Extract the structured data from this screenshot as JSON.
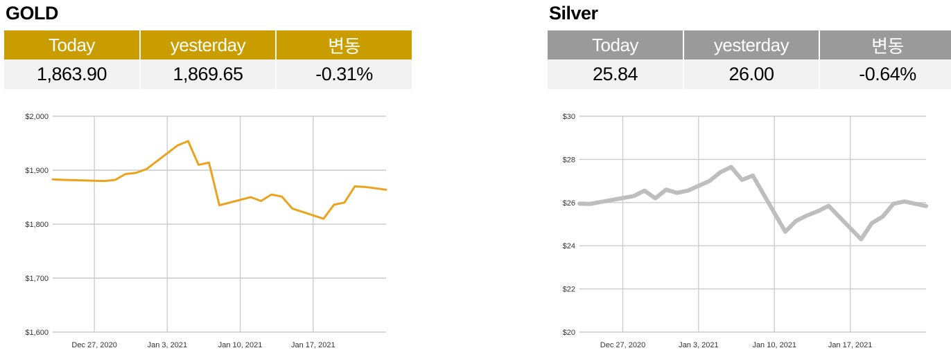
{
  "colors": {
    "gold": "#c99c00",
    "gold_line": "#eba21d",
    "silver": "#9a9a9a",
    "silver_line": "#bebebe"
  },
  "gold": {
    "title": "GOLD",
    "headers": [
      "Today",
      "yesterday",
      "변동"
    ],
    "values": [
      "1,863.90",
      "1,869.65",
      "-0.31%"
    ]
  },
  "silver": {
    "title": "Silver",
    "headers": [
      "Today",
      "yesterday",
      "변동"
    ],
    "values": [
      "25.84",
      "26.00",
      "-0.64%"
    ]
  },
  "chart_data": [
    {
      "type": "line",
      "ylim": [
        1600,
        2000
      ],
      "yticks": [
        2000,
        1900,
        1800,
        1700,
        1600
      ],
      "ytick_labels": [
        "$2,000",
        "$1,900",
        "$1,800",
        "$1,700",
        "$1,600"
      ],
      "xlim": [
        "2020-12-23",
        "2021-01-24"
      ],
      "xticks": [
        "2020-12-27",
        "2021-01-03",
        "2021-01-10",
        "2021-01-17"
      ],
      "xtick_labels": [
        "Dec 27, 2020",
        "Jan 3, 2021",
        "Jan 10, 2021",
        "Jan 17, 2021"
      ],
      "grid": true,
      "series": [
        {
          "color": "#eba21d",
          "x": [
            "2020-12-23",
            "2020-12-24",
            "2020-12-28",
            "2020-12-29",
            "2020-12-30",
            "2020-12-31",
            "2021-01-01",
            "2021-01-04",
            "2021-01-05",
            "2021-01-06",
            "2021-01-07",
            "2021-01-08",
            "2021-01-11",
            "2021-01-12",
            "2021-01-13",
            "2021-01-14",
            "2021-01-15",
            "2021-01-18",
            "2021-01-19",
            "2021-01-20",
            "2021-01-21",
            "2021-01-22",
            "2021-01-24"
          ],
          "values": [
            1883,
            1882,
            1880,
            1882,
            1893,
            1895,
            1902,
            1946,
            1954,
            1910,
            1914,
            1835,
            1850,
            1843,
            1855,
            1851,
            1829,
            1810,
            1836,
            1840,
            1870,
            1869,
            1863.9
          ]
        }
      ]
    },
    {
      "type": "line",
      "ylim": [
        20,
        30
      ],
      "yticks": [
        30,
        28,
        26,
        24,
        22,
        20
      ],
      "ytick_labels": [
        "$30",
        "$28",
        "$26",
        "$24",
        "$22",
        "$20"
      ],
      "xlim": [
        "2020-12-23",
        "2021-01-24"
      ],
      "xticks": [
        "2020-12-27",
        "2021-01-03",
        "2021-01-10",
        "2021-01-17"
      ],
      "xtick_labels": [
        "Dec 27, 2020",
        "Jan 3, 2021",
        "Jan 10, 2021",
        "Jan 17, 2021"
      ],
      "grid": true,
      "series": [
        {
          "color": "#bebebe",
          "x": [
            "2020-12-23",
            "2020-12-24",
            "2020-12-28",
            "2020-12-29",
            "2020-12-30",
            "2020-12-31",
            "2021-01-01",
            "2021-01-02",
            "2021-01-04",
            "2021-01-05",
            "2021-01-06",
            "2021-01-07",
            "2021-01-08",
            "2021-01-11",
            "2021-01-12",
            "2021-01-13",
            "2021-01-14",
            "2021-01-15",
            "2021-01-18",
            "2021-01-19",
            "2021-01-20",
            "2021-01-21",
            "2021-01-22",
            "2021-01-24"
          ],
          "values": [
            25.95,
            25.94,
            26.3,
            26.55,
            26.2,
            26.6,
            26.45,
            26.55,
            27.0,
            27.4,
            27.65,
            27.05,
            27.25,
            24.65,
            25.15,
            25.4,
            25.6,
            25.85,
            24.3,
            25.05,
            25.35,
            25.95,
            26.05,
            25.84
          ]
        }
      ]
    }
  ]
}
